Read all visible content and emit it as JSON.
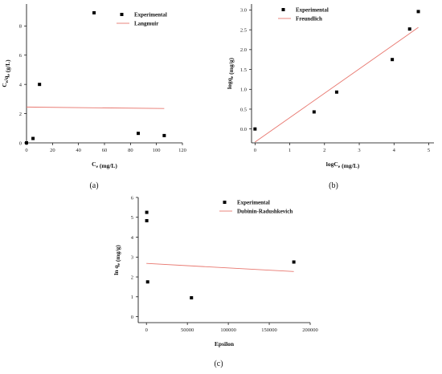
{
  "chart_data": [
    {
      "type": "scatter",
      "panel_label": "(a)",
      "xlabel": "Ce (mg/L)",
      "ylabel": "Ce/qe (g/L)",
      "xlim": [
        0,
        120
      ],
      "ylim": [
        0,
        9.5
      ],
      "xticks": [
        "0",
        "20",
        "40",
        "60",
        "80",
        "100",
        "120"
      ],
      "yticks": [
        "0",
        "2",
        "4",
        "6",
        "8"
      ],
      "legend_position": "top-right",
      "series": [
        {
          "name": "Experimental",
          "kind": "points",
          "x": [
            0,
            5,
            10,
            52,
            86,
            106
          ],
          "y": [
            0,
            0.3,
            4.0,
            8.9,
            0.65,
            0.5
          ]
        },
        {
          "name": "Langmuir",
          "kind": "line",
          "x": [
            0,
            106
          ],
          "y": [
            2.45,
            2.35
          ]
        }
      ]
    },
    {
      "type": "scatter",
      "panel_label": "(b)",
      "xlabel": "logCe (mg/L)",
      "ylabel": "logqe (mg/g)",
      "xlim": [
        -0.1,
        5.15
      ],
      "ylim": [
        -0.35,
        3.15
      ],
      "xticks": [
        "0",
        "1",
        "2",
        "3",
        "4",
        "5"
      ],
      "yticks": [
        "0.0",
        "0.5",
        "1.0",
        "1.5",
        "2.0",
        "2.5",
        "3.0"
      ],
      "legend_position": "top-left",
      "series": [
        {
          "name": "Experimental",
          "kind": "points",
          "x": [
            0,
            1.7,
            2.35,
            3.95,
            4.45,
            4.7
          ],
          "y": [
            0,
            0.43,
            0.93,
            1.75,
            2.52,
            2.96
          ]
        },
        {
          "name": "Freundlich",
          "kind": "line",
          "x": [
            0,
            4.7
          ],
          "y": [
            -0.33,
            2.56
          ]
        }
      ]
    },
    {
      "type": "scatter",
      "panel_label": "(c)",
      "xlabel": "Epsilon",
      "ylabel": "ln qe (mg/g)",
      "xlim": [
        -10000,
        200000
      ],
      "ylim": [
        -0.3,
        6
      ],
      "xticks": [
        "0",
        "50000",
        "100000",
        "150000",
        "200000"
      ],
      "yticks": [
        "0",
        "1",
        "2",
        "3",
        "4",
        "5",
        "6"
      ],
      "legend_position": "top-right",
      "series": [
        {
          "name": "Experimental",
          "kind": "points",
          "x": [
            400,
            400,
            1500,
            55000,
            180000
          ],
          "y": [
            5.25,
            4.83,
            1.75,
            0.95,
            2.75
          ]
        },
        {
          "name": "Dubinin-Radushkevich",
          "kind": "line",
          "x": [
            0,
            180000
          ],
          "y": [
            2.68,
            2.27
          ]
        }
      ]
    }
  ],
  "colors": {
    "points": "#000000",
    "fit_line": "#e8776f",
    "axis": "#000000"
  }
}
